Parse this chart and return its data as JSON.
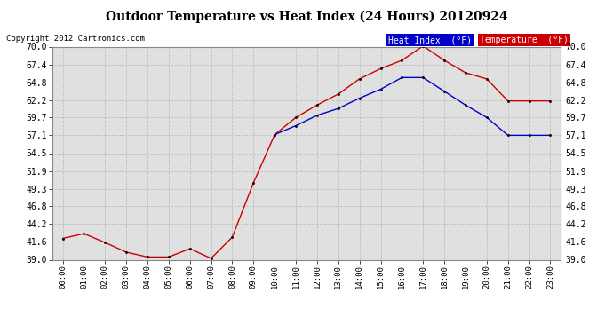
{
  "title": "Outdoor Temperature vs Heat Index (24 Hours) 20120924",
  "copyright": "Copyright 2012 Cartronics.com",
  "background_color": "#ffffff",
  "plot_background": "#ffffff",
  "grid_color": "#bbbbbb",
  "x_labels": [
    "00:00",
    "01:00",
    "02:00",
    "03:00",
    "04:00",
    "05:00",
    "06:00",
    "07:00",
    "08:00",
    "09:00",
    "10:00",
    "11:00",
    "12:00",
    "13:00",
    "14:00",
    "15:00",
    "16:00",
    "17:00",
    "18:00",
    "19:00",
    "20:00",
    "21:00",
    "22:00",
    "23:00"
  ],
  "temperature": [
    42.1,
    42.8,
    41.5,
    40.1,
    39.4,
    39.4,
    40.6,
    39.2,
    42.3,
    50.2,
    57.2,
    59.7,
    61.5,
    63.1,
    65.3,
    66.8,
    68.0,
    70.1,
    68.0,
    66.2,
    65.3,
    62.1,
    62.1,
    62.1
  ],
  "heat_index": [
    null,
    null,
    null,
    null,
    null,
    null,
    null,
    null,
    null,
    null,
    57.2,
    58.5,
    60.0,
    61.0,
    62.5,
    63.8,
    65.5,
    65.5,
    63.5,
    61.5,
    59.7,
    57.1,
    57.1,
    57.1
  ],
  "temp_color": "#cc0000",
  "heat_index_color": "#0000cc",
  "ylim_min": 39.0,
  "ylim_max": 70.0,
  "yticks": [
    39.0,
    41.6,
    44.2,
    46.8,
    49.3,
    51.9,
    54.5,
    57.1,
    59.7,
    62.2,
    64.8,
    67.4,
    70.0
  ]
}
